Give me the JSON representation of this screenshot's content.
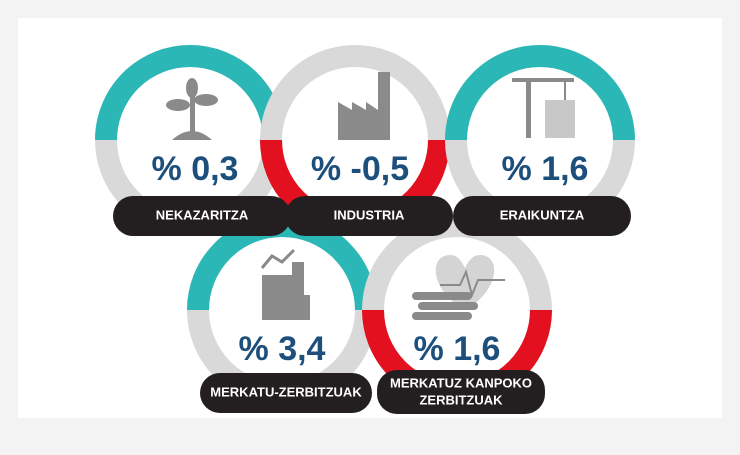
{
  "items": [
    {
      "label": "NEKAZARITZA",
      "value": "% 0,3"
    },
    {
      "label": "INDUSTRIA",
      "value": "% -0,5"
    },
    {
      "label": "ERAIKUNTZA",
      "value": "% 1,6"
    },
    {
      "label": "MERKATU-ZERBITZUAK",
      "value": "% 3,4"
    },
    {
      "label": [
        "MERKATUZ KANPOKO",
        "ZERBITZUAK"
      ],
      "value": "% 1,6"
    }
  ]
}
